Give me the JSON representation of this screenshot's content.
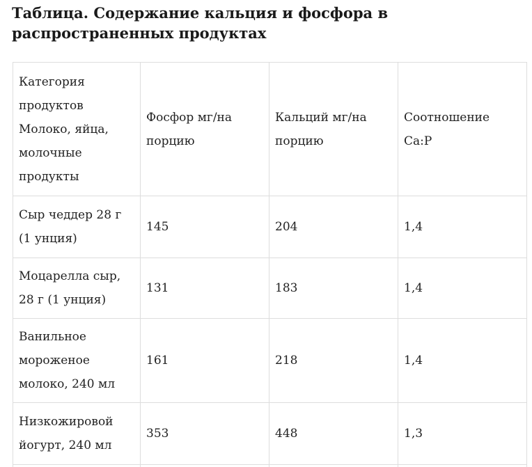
{
  "title": "Таблица. Содержание кальция и фосфора в распространенных продуктах",
  "table": {
    "header": [
      "Категория продуктов Молоко, яйца, молочные продукты",
      "Фосфор мг/на порцию",
      "Кальций мг/на порцию",
      "Соотношение Ca:P"
    ],
    "rows": [
      [
        "Сыр чеддер 28 г (1 унция)",
        "145",
        "204",
        "1,4"
      ],
      [
        "Моцарелла сыр, 28 г (1 унция)",
        "131",
        "183",
        "1,4"
      ],
      [
        "Ванильное мороженое молоко, 240 мл",
        "161",
        "218",
        "1,4"
      ],
      [
        "Низкожировой йогурт, 240 мл",
        "353",
        "448",
        "1,3"
      ]
    ]
  },
  "colors": {
    "border": "#dddddd",
    "text": "#222222",
    "title": "#1a1a1a"
  }
}
